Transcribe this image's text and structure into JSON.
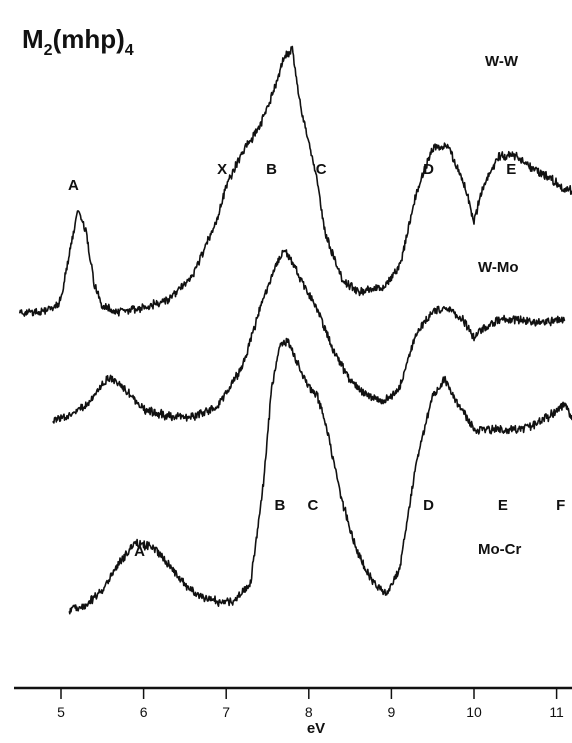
{
  "chart_data": {
    "type": "line",
    "title": {
      "prefix": "M",
      "sub1": "2",
      "middle": "(mhp)",
      "sub2": "4"
    },
    "xlabel": "eV",
    "ylabel": "",
    "xlim": [
      4.45,
      11.4
    ],
    "x_ticks": [
      "5",
      "6",
      "7",
      "8",
      "9",
      "10",
      "11"
    ],
    "grid": false,
    "series": [
      {
        "name": "W-W",
        "points": [
          [
            4.5,
            0.0
          ],
          [
            4.7,
            0.0
          ],
          [
            4.9,
            0.02
          ],
          [
            5.0,
            0.06
          ],
          [
            5.1,
            0.28
          ],
          [
            5.2,
            0.5
          ],
          [
            5.3,
            0.4
          ],
          [
            5.4,
            0.14
          ],
          [
            5.5,
            0.03
          ],
          [
            5.7,
            0.0
          ],
          [
            6.0,
            0.02
          ],
          [
            6.3,
            0.06
          ],
          [
            6.6,
            0.18
          ],
          [
            6.9,
            0.46
          ],
          [
            7.0,
            0.62
          ],
          [
            7.2,
            0.78
          ],
          [
            7.4,
            0.9
          ],
          [
            7.55,
            1.05
          ],
          [
            7.7,
            1.24
          ],
          [
            7.8,
            1.28
          ],
          [
            7.9,
            1.0
          ],
          [
            8.0,
            0.84
          ],
          [
            8.1,
            0.64
          ],
          [
            8.2,
            0.38
          ],
          [
            8.4,
            0.16
          ],
          [
            8.6,
            0.1
          ],
          [
            8.9,
            0.12
          ],
          [
            9.1,
            0.22
          ],
          [
            9.3,
            0.58
          ],
          [
            9.5,
            0.8
          ],
          [
            9.7,
            0.8
          ],
          [
            9.9,
            0.6
          ],
          [
            10.0,
            0.44
          ],
          [
            10.1,
            0.6
          ],
          [
            10.3,
            0.76
          ],
          [
            10.5,
            0.76
          ],
          [
            10.7,
            0.7
          ],
          [
            10.9,
            0.66
          ],
          [
            11.1,
            0.6
          ],
          [
            11.3,
            0.58
          ]
        ]
      },
      {
        "name": "W-Mo",
        "points": [
          [
            4.9,
            0.0
          ],
          [
            5.1,
            0.02
          ],
          [
            5.3,
            0.08
          ],
          [
            5.5,
            0.2
          ],
          [
            5.6,
            0.24
          ],
          [
            5.75,
            0.18
          ],
          [
            6.0,
            0.06
          ],
          [
            6.3,
            0.02
          ],
          [
            6.6,
            0.02
          ],
          [
            6.9,
            0.08
          ],
          [
            7.2,
            0.3
          ],
          [
            7.4,
            0.6
          ],
          [
            7.6,
            0.86
          ],
          [
            7.7,
            0.94
          ],
          [
            7.8,
            0.88
          ],
          [
            7.9,
            0.78
          ],
          [
            8.1,
            0.62
          ],
          [
            8.3,
            0.38
          ],
          [
            8.5,
            0.22
          ],
          [
            8.7,
            0.14
          ],
          [
            8.9,
            0.1
          ],
          [
            9.1,
            0.18
          ],
          [
            9.3,
            0.48
          ],
          [
            9.5,
            0.6
          ],
          [
            9.7,
            0.62
          ],
          [
            9.9,
            0.54
          ],
          [
            10.0,
            0.46
          ],
          [
            10.1,
            0.5
          ],
          [
            10.3,
            0.56
          ],
          [
            10.5,
            0.56
          ],
          [
            10.8,
            0.54
          ],
          [
            11.1,
            0.56
          ]
        ]
      },
      {
        "name": "Mo-Cr",
        "points": [
          [
            5.1,
            0.0
          ],
          [
            5.3,
            0.02
          ],
          [
            5.5,
            0.1
          ],
          [
            5.7,
            0.22
          ],
          [
            5.9,
            0.32
          ],
          [
            6.1,
            0.3
          ],
          [
            6.3,
            0.22
          ],
          [
            6.5,
            0.12
          ],
          [
            6.7,
            0.06
          ],
          [
            6.9,
            0.04
          ],
          [
            7.1,
            0.04
          ],
          [
            7.3,
            0.14
          ],
          [
            7.45,
            0.6
          ],
          [
            7.55,
            1.06
          ],
          [
            7.65,
            1.26
          ],
          [
            7.75,
            1.28
          ],
          [
            7.9,
            1.14
          ],
          [
            8.0,
            1.06
          ],
          [
            8.1,
            1.02
          ],
          [
            8.2,
            0.9
          ],
          [
            8.4,
            0.52
          ],
          [
            8.6,
            0.26
          ],
          [
            8.8,
            0.12
          ],
          [
            8.95,
            0.08
          ],
          [
            9.1,
            0.2
          ],
          [
            9.3,
            0.7
          ],
          [
            9.5,
            1.02
          ],
          [
            9.65,
            1.1
          ],
          [
            9.8,
            0.98
          ],
          [
            10.0,
            0.86
          ],
          [
            10.3,
            0.86
          ],
          [
            10.6,
            0.86
          ],
          [
            10.9,
            0.92
          ],
          [
            11.1,
            0.98
          ],
          [
            11.25,
            0.86
          ],
          [
            11.4,
            0.6
          ]
        ]
      }
    ],
    "annotations": [
      {
        "series": "W-W",
        "text": "A",
        "x": 5.15
      },
      {
        "series": "W-W",
        "text": "X",
        "x": 6.95
      },
      {
        "series": "W-W",
        "text": "B",
        "x": 7.55
      },
      {
        "series": "W-W",
        "text": "C",
        "x": 8.15
      },
      {
        "series": "W-W",
        "text": "D",
        "x": 9.45
      },
      {
        "series": "W-W",
        "text": "E",
        "x": 10.45
      },
      {
        "series": "Mo-Cr",
        "text": "A",
        "x": 5.95
      },
      {
        "series": "Mo-Cr",
        "text": "B",
        "x": 7.65
      },
      {
        "series": "Mo-Cr",
        "text": "C",
        "x": 8.05
      },
      {
        "series": "Mo-Cr",
        "text": "D",
        "x": 9.45
      },
      {
        "series": "Mo-Cr",
        "text": "E",
        "x": 10.35
      },
      {
        "series": "Mo-Cr",
        "text": "F",
        "x": 11.05
      }
    ]
  }
}
